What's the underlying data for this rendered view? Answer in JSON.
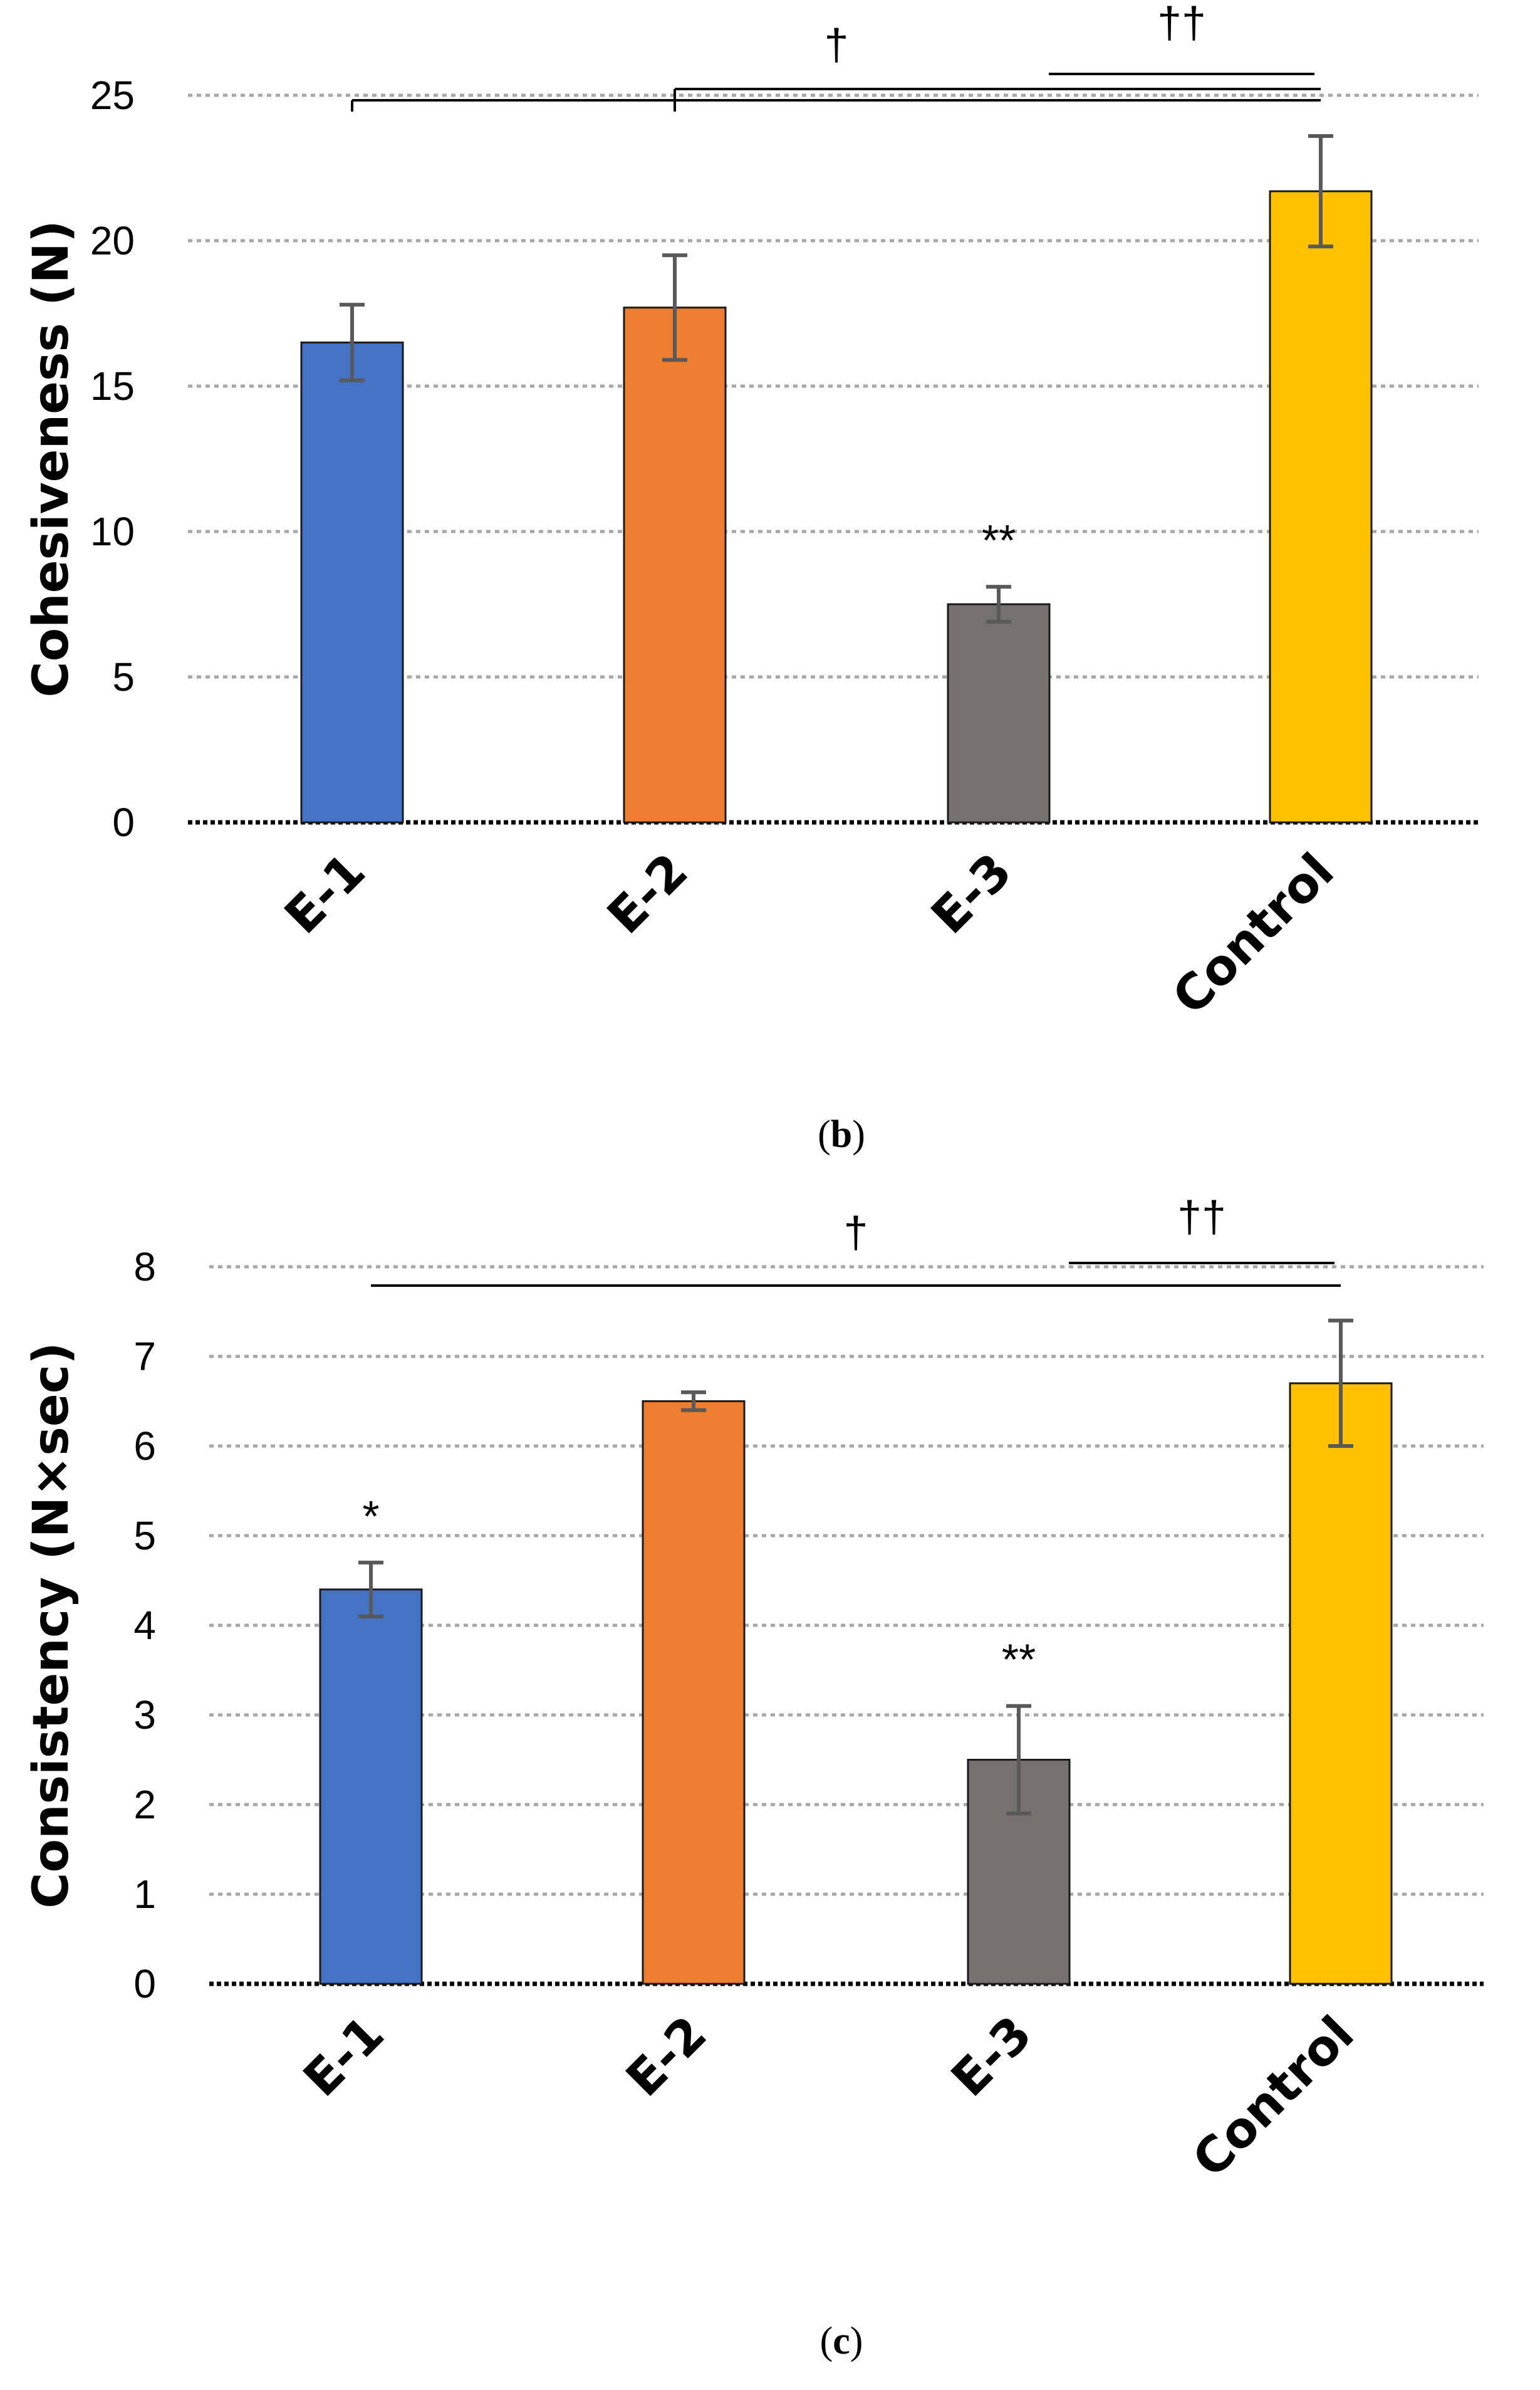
{
  "chart_data": [
    {
      "type": "bar",
      "title": "",
      "ylabel": "Cohesiveness (N)",
      "xlabel": "",
      "categories": [
        "E-1",
        "E-2",
        "E-3",
        "Control"
      ],
      "values": [
        16.5,
        17.7,
        7.5,
        21.7
      ],
      "errors": [
        1.3,
        1.8,
        0.6,
        1.9
      ],
      "colors": [
        "#4472C4",
        "#ED7D31",
        "#767171",
        "#FFC000"
      ],
      "ylim": [
        0,
        25
      ],
      "yticks": [
        "0",
        "5",
        "10",
        "15",
        "20",
        "25"
      ],
      "grid": true,
      "bar_annotations": [
        "",
        "",
        "**",
        ""
      ],
      "significance": [
        {
          "symbol": "†",
          "from": "E-1",
          "to": "Control",
          "branch": "E-2"
        },
        {
          "symbol": "††",
          "from": "E-3",
          "to": "Control"
        }
      ],
      "caption_letter": "b"
    },
    {
      "type": "bar",
      "title": "",
      "ylabel": "Consistency (N×sec)",
      "xlabel": "",
      "categories": [
        "E-1",
        "E-2",
        "E-3",
        "Control"
      ],
      "values": [
        4.4,
        6.5,
        2.5,
        6.7
      ],
      "errors": [
        0.3,
        0.1,
        0.6,
        0.7
      ],
      "colors": [
        "#4472C4",
        "#ED7D31",
        "#767171",
        "#FFC000"
      ],
      "ylim": [
        0,
        8
      ],
      "yticks": [
        "0",
        "1",
        "2",
        "3",
        "4",
        "5",
        "6",
        "7",
        "8"
      ],
      "grid": true,
      "bar_annotations": [
        "*",
        "",
        "**",
        ""
      ],
      "significance": [
        {
          "symbol": "†",
          "from": "E-1",
          "to": "Control"
        },
        {
          "symbol": "††",
          "from": "E-3",
          "to": "Control"
        }
      ],
      "caption_letter": "c"
    }
  ]
}
